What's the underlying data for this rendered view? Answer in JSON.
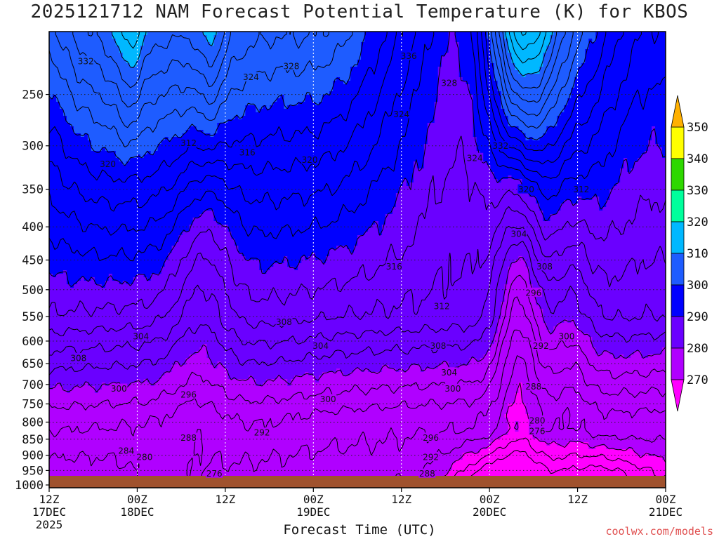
{
  "chart_data": {
    "type": "contour",
    "title": "2025121712 NAM Forecast Potential Temperature (K) for KBOS",
    "xlabel": "Forecast Time (UTC)",
    "credit": "coolwx.com/models",
    "y_axis": {
      "ticks": [
        250,
        300,
        350,
        400,
        450,
        500,
        550,
        600,
        650,
        700,
        750,
        800,
        850,
        900,
        950,
        1000
      ],
      "range": [
        200,
        1010
      ],
      "scale": "log-pressure"
    },
    "x_axis": {
      "range": [
        0,
        84
      ],
      "ticks": [
        {
          "t": 0,
          "lines": [
            "12Z",
            "17DEC",
            "2025"
          ]
        },
        {
          "t": 12,
          "lines": [
            "00Z",
            "18DEC"
          ]
        },
        {
          "t": 24,
          "lines": [
            "12Z"
          ]
        },
        {
          "t": 36,
          "lines": [
            "00Z",
            "19DEC"
          ]
        },
        {
          "t": 48,
          "lines": [
            "12Z"
          ]
        },
        {
          "t": 60,
          "lines": [
            "00Z",
            "20DEC"
          ]
        },
        {
          "t": 72,
          "lines": [
            "12Z"
          ]
        },
        {
          "t": 84,
          "lines": [
            "00Z",
            "21DEC"
          ]
        }
      ]
    },
    "colorbar": {
      "levels": [
        270,
        280,
        290,
        300,
        310,
        320,
        330,
        340,
        350
      ],
      "colors": [
        "#ff00ff",
        "#b000ff",
        "#6a00ff",
        "#0000ff",
        "#1e5cff",
        "#00b8ff",
        "#00ff9c",
        "#2ed800",
        "#ffff00",
        "#ffb000"
      ]
    },
    "contour_labels": [
      {
        "t": 5.0,
        "p": 222,
        "text": "332"
      },
      {
        "t": 33.0,
        "p": 226,
        "text": "328"
      },
      {
        "t": 27.5,
        "p": 235,
        "text": "324"
      },
      {
        "t": 49.0,
        "p": 218,
        "text": "336"
      },
      {
        "t": 54.5,
        "p": 240,
        "text": "328"
      },
      {
        "t": 48.0,
        "p": 268,
        "text": "324"
      },
      {
        "t": 8.0,
        "p": 320,
        "text": "320"
      },
      {
        "t": 19.0,
        "p": 297,
        "text": "312"
      },
      {
        "t": 27.0,
        "p": 307,
        "text": "316"
      },
      {
        "t": 35.5,
        "p": 315,
        "text": "320"
      },
      {
        "t": 58.0,
        "p": 313,
        "text": "324"
      },
      {
        "t": 61.5,
        "p": 300,
        "text": "332"
      },
      {
        "t": 65.0,
        "p": 350,
        "text": "320"
      },
      {
        "t": 72.5,
        "p": 350,
        "text": "312"
      },
      {
        "t": 47.0,
        "p": 460,
        "text": "316"
      },
      {
        "t": 53.5,
        "p": 530,
        "text": "312"
      },
      {
        "t": 64.0,
        "p": 410,
        "text": "304"
      },
      {
        "t": 67.5,
        "p": 460,
        "text": "308"
      },
      {
        "t": 66.0,
        "p": 505,
        "text": "296"
      },
      {
        "t": 12.5,
        "p": 590,
        "text": "304"
      },
      {
        "t": 4.0,
        "p": 637,
        "text": "308"
      },
      {
        "t": 32.0,
        "p": 560,
        "text": "308"
      },
      {
        "t": 37.0,
        "p": 610,
        "text": "304"
      },
      {
        "t": 53.0,
        "p": 610,
        "text": "308"
      },
      {
        "t": 54.5,
        "p": 670,
        "text": "304"
      },
      {
        "t": 70.5,
        "p": 590,
        "text": "300"
      },
      {
        "t": 67.0,
        "p": 610,
        "text": "292"
      },
      {
        "t": 9.5,
        "p": 710,
        "text": "300"
      },
      {
        "t": 19.0,
        "p": 725,
        "text": "296"
      },
      {
        "t": 38.0,
        "p": 737,
        "text": "300"
      },
      {
        "t": 55.0,
        "p": 710,
        "text": "300"
      },
      {
        "t": 66.0,
        "p": 705,
        "text": "288"
      },
      {
        "t": 19.0,
        "p": 845,
        "text": "288"
      },
      {
        "t": 29.0,
        "p": 830,
        "text": "292"
      },
      {
        "t": 52.0,
        "p": 845,
        "text": "296"
      },
      {
        "t": 52.0,
        "p": 905,
        "text": "292"
      },
      {
        "t": 10.5,
        "p": 885,
        "text": "284"
      },
      {
        "t": 13.0,
        "p": 905,
        "text": "280"
      },
      {
        "t": 66.5,
        "p": 795,
        "text": "280"
      },
      {
        "t": 66.5,
        "p": 825,
        "text": "276"
      },
      {
        "t": 22.5,
        "p": 960,
        "text": "276"
      },
      {
        "t": 51.5,
        "p": 960,
        "text": "288"
      }
    ]
  }
}
